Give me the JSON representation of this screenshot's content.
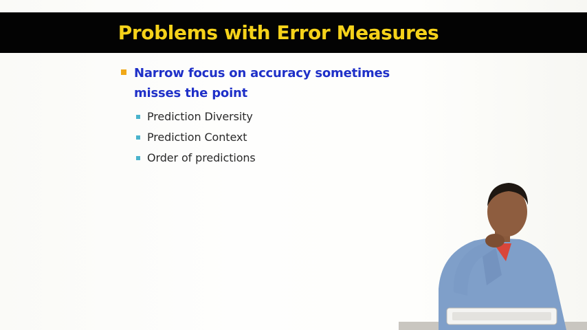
{
  "slide": {
    "title": "Problems with Error Measures",
    "bullets": [
      {
        "text": "Narrow focus on accuracy sometimes misses the point",
        "sub_items": [
          "Prediction Diversity",
          "Prediction Context",
          "Order of predictions"
        ]
      }
    ]
  },
  "colors": {
    "title_bar": "#030303",
    "title_text": "#f5d21a",
    "level1_text": "#1f30c8",
    "level1_marker": "#f0a818",
    "level2_marker": "#4ab3cc"
  }
}
